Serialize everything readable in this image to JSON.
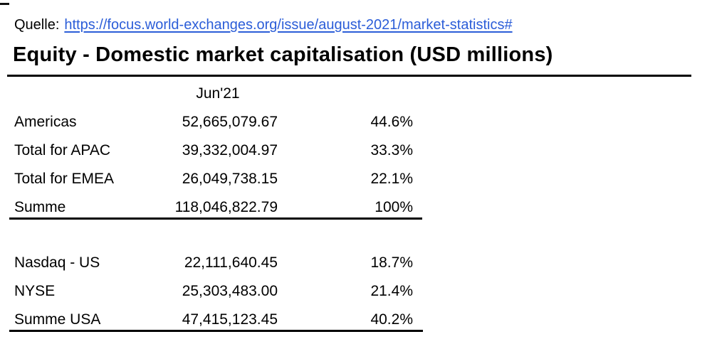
{
  "source": {
    "label": "Quelle:",
    "url": "https://focus.world-exchanges.org/issue/august-2021/market-statistics#"
  },
  "title": "Equity - Domestic market capitalisation (USD millions)",
  "table": {
    "period_header": "Jun'21",
    "regions": [
      {
        "label": "Americas",
        "value": "52,665,079.67",
        "pct": "44.6%"
      },
      {
        "label": "Total for APAC",
        "value": "39,332,004.97",
        "pct": "33.3%"
      },
      {
        "label": "Total for EMEA",
        "value": "26,049,738.15",
        "pct": "22.1%"
      },
      {
        "label": "Summe",
        "value": "118,046,822.79",
        "pct": "100%"
      }
    ],
    "usa": [
      {
        "label": "Nasdaq - US",
        "value": "22,111,640.45",
        "pct": "18.7%"
      },
      {
        "label": "NYSE",
        "value": "25,303,483.00",
        "pct": "21.4%"
      },
      {
        "label": "Summe USA",
        "value": "47,415,123.45",
        "pct": "40.2%"
      }
    ]
  },
  "colors": {
    "link_blue": "#2b5dd8",
    "text": "#000000",
    "rule": "#000000"
  }
}
